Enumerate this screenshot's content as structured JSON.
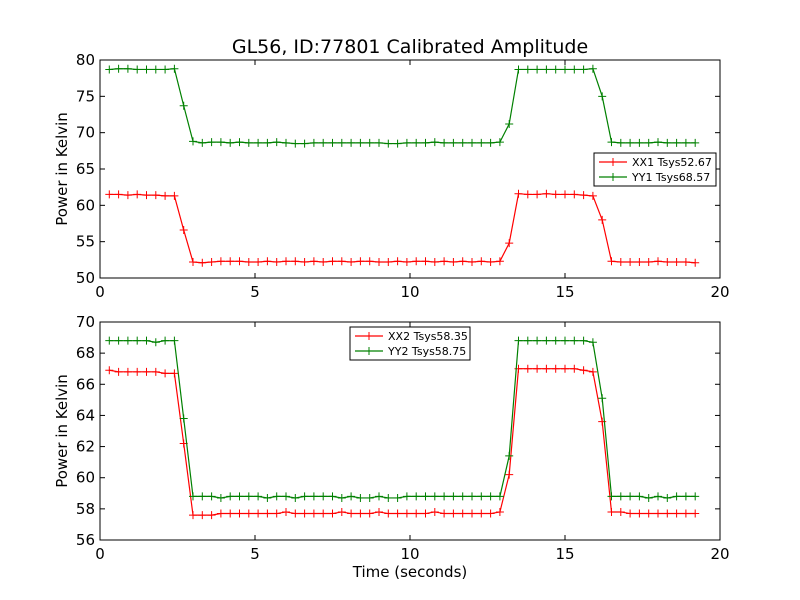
{
  "title": "GL56, ID:77801 Calibrated Amplitude",
  "colors": {
    "XX": "#ff0000",
    "YY": "#008000",
    "axis": "#000000"
  },
  "chart_data": [
    {
      "type": "line",
      "title": "GL56, ID:77801 Calibrated Amplitude",
      "xlabel": "",
      "ylabel": "Power in Kelvin",
      "xlim": [
        0,
        20
      ],
      "ylim": [
        50,
        80
      ],
      "xticks": [
        0,
        5,
        10,
        15,
        20
      ],
      "yticks": [
        50,
        55,
        60,
        65,
        70,
        75,
        80
      ],
      "grid": false,
      "legend_position": "center-right",
      "marker": "+",
      "x": [
        0.3,
        0.6,
        0.9,
        1.2,
        1.5,
        1.8,
        2.1,
        2.4,
        2.7,
        3.0,
        3.3,
        3.6,
        3.9,
        4.2,
        4.5,
        4.8,
        5.1,
        5.4,
        5.7,
        6.0,
        6.3,
        6.6,
        6.9,
        7.2,
        7.5,
        7.8,
        8.1,
        8.4,
        8.7,
        9.0,
        9.3,
        9.6,
        9.9,
        10.2,
        10.5,
        10.8,
        11.1,
        11.4,
        11.7,
        12.0,
        12.3,
        12.6,
        12.9,
        13.2,
        13.5,
        13.8,
        14.1,
        14.4,
        14.7,
        15.0,
        15.3,
        15.6,
        15.9,
        16.2,
        16.5,
        16.8,
        17.1,
        17.4,
        17.7,
        18.0,
        18.3,
        18.6,
        18.9,
        19.2
      ],
      "series": [
        {
          "name": "XX1 Tsys52.67",
          "color": "#ff0000",
          "values": [
            61.5,
            61.5,
            61.4,
            61.5,
            61.4,
            61.4,
            61.3,
            61.3,
            56.6,
            52.2,
            52.1,
            52.2,
            52.3,
            52.3,
            52.3,
            52.2,
            52.2,
            52.3,
            52.2,
            52.3,
            52.3,
            52.2,
            52.3,
            52.2,
            52.3,
            52.3,
            52.2,
            52.3,
            52.3,
            52.2,
            52.2,
            52.3,
            52.2,
            52.3,
            52.3,
            52.2,
            52.3,
            52.2,
            52.3,
            52.2,
            52.3,
            52.2,
            52.3,
            54.8,
            61.6,
            61.5,
            61.5,
            61.6,
            61.5,
            61.5,
            61.5,
            61.4,
            61.3,
            58.0,
            52.3,
            52.2,
            52.2,
            52.2,
            52.2,
            52.3,
            52.2,
            52.2,
            52.2,
            52.1
          ]
        },
        {
          "name": "YY1 Tsys68.57",
          "color": "#008000",
          "values": [
            78.7,
            78.8,
            78.8,
            78.7,
            78.7,
            78.7,
            78.7,
            78.8,
            73.7,
            68.8,
            68.6,
            68.7,
            68.7,
            68.6,
            68.7,
            68.6,
            68.6,
            68.6,
            68.7,
            68.6,
            68.5,
            68.5,
            68.6,
            68.6,
            68.6,
            68.6,
            68.6,
            68.6,
            68.6,
            68.6,
            68.5,
            68.5,
            68.6,
            68.6,
            68.6,
            68.7,
            68.6,
            68.6,
            68.6,
            68.6,
            68.6,
            68.6,
            68.7,
            71.2,
            78.7,
            78.7,
            78.7,
            78.7,
            78.7,
            78.7,
            78.7,
            78.7,
            78.8,
            75.0,
            68.7,
            68.6,
            68.6,
            68.6,
            68.6,
            68.7,
            68.6,
            68.6,
            68.6,
            68.6
          ]
        }
      ]
    },
    {
      "type": "line",
      "title": "",
      "xlabel": "Time (seconds)",
      "ylabel": "Power in Kelvin",
      "xlim": [
        0,
        20
      ],
      "ylim": [
        56,
        70
      ],
      "xticks": [
        0,
        5,
        10,
        15,
        20
      ],
      "yticks": [
        56,
        58,
        60,
        62,
        64,
        66,
        68,
        70
      ],
      "grid": false,
      "legend_position": "top-center",
      "marker": "+",
      "x": [
        0.3,
        0.6,
        0.9,
        1.2,
        1.5,
        1.8,
        2.1,
        2.4,
        2.7,
        3.0,
        3.3,
        3.6,
        3.9,
        4.2,
        4.5,
        4.8,
        5.1,
        5.4,
        5.7,
        6.0,
        6.3,
        6.6,
        6.9,
        7.2,
        7.5,
        7.8,
        8.1,
        8.4,
        8.7,
        9.0,
        9.3,
        9.6,
        9.9,
        10.2,
        10.5,
        10.8,
        11.1,
        11.4,
        11.7,
        12.0,
        12.3,
        12.6,
        12.9,
        13.2,
        13.5,
        13.8,
        14.1,
        14.4,
        14.7,
        15.0,
        15.3,
        15.6,
        15.9,
        16.2,
        16.5,
        16.8,
        17.1,
        17.4,
        17.7,
        18.0,
        18.3,
        18.6,
        18.9,
        19.2
      ],
      "series": [
        {
          "name": "XX2 Tsys58.35",
          "color": "#ff0000",
          "values": [
            66.9,
            66.8,
            66.8,
            66.8,
            66.8,
            66.8,
            66.7,
            66.7,
            62.2,
            57.6,
            57.6,
            57.6,
            57.7,
            57.7,
            57.7,
            57.7,
            57.7,
            57.7,
            57.7,
            57.8,
            57.7,
            57.7,
            57.7,
            57.7,
            57.7,
            57.8,
            57.7,
            57.7,
            57.7,
            57.8,
            57.7,
            57.7,
            57.7,
            57.7,
            57.7,
            57.8,
            57.7,
            57.7,
            57.7,
            57.7,
            57.7,
            57.7,
            57.8,
            60.2,
            67.0,
            67.0,
            67.0,
            67.0,
            67.0,
            67.0,
            67.0,
            66.9,
            66.8,
            63.6,
            57.8,
            57.8,
            57.7,
            57.7,
            57.7,
            57.7,
            57.7,
            57.7,
            57.7,
            57.7
          ]
        },
        {
          "name": "YY2 Tsys58.75",
          "color": "#008000",
          "values": [
            68.8,
            68.8,
            68.8,
            68.8,
            68.8,
            68.7,
            68.8,
            68.8,
            63.8,
            58.8,
            58.8,
            58.8,
            58.7,
            58.8,
            58.8,
            58.8,
            58.8,
            58.7,
            58.8,
            58.8,
            58.7,
            58.8,
            58.8,
            58.8,
            58.8,
            58.7,
            58.8,
            58.7,
            58.7,
            58.8,
            58.7,
            58.7,
            58.8,
            58.8,
            58.8,
            58.8,
            58.8,
            58.8,
            58.8,
            58.8,
            58.8,
            58.8,
            58.8,
            61.4,
            68.8,
            68.8,
            68.8,
            68.8,
            68.8,
            68.8,
            68.8,
            68.8,
            68.7,
            65.1,
            58.8,
            58.8,
            58.8,
            58.8,
            58.7,
            58.8,
            58.7,
            58.8,
            58.8,
            58.8
          ]
        }
      ]
    }
  ]
}
